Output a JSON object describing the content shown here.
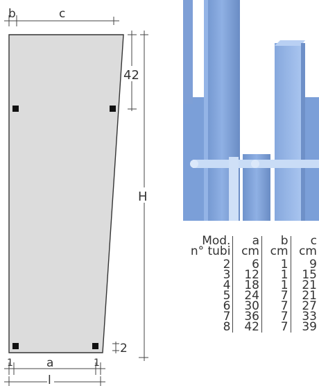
{
  "diagram": {
    "dim_labels": {
      "b": "b",
      "c": "c",
      "h42": "42",
      "H": "H",
      "two": "2",
      "one_left": "1",
      "a": "a",
      "one_right": "1",
      "l": "l"
    }
  },
  "table": {
    "headers": [
      {
        "top": "Mod.",
        "bottom": "n° tubi"
      },
      {
        "top": "a",
        "bottom": "cm"
      },
      {
        "top": "b",
        "bottom": "cm"
      },
      {
        "top": "c",
        "bottom": "cm"
      }
    ],
    "rows": [
      [
        "2",
        "6",
        "1",
        "9"
      ],
      [
        "3",
        "12",
        "1",
        "15"
      ],
      [
        "4",
        "18",
        "1",
        "21"
      ],
      [
        "5",
        "24",
        "7",
        "21"
      ],
      [
        "6",
        "30",
        "7",
        "27"
      ],
      [
        "7",
        "36",
        "7",
        "33"
      ],
      [
        "8",
        "42",
        "7",
        "39"
      ]
    ]
  },
  "colors": {
    "panel_fill": "#dcdcdc",
    "tube_blue": "#7a9ed6",
    "tube_blue_light": "#a9c4ee",
    "bar_light": "#cfe0f7"
  }
}
